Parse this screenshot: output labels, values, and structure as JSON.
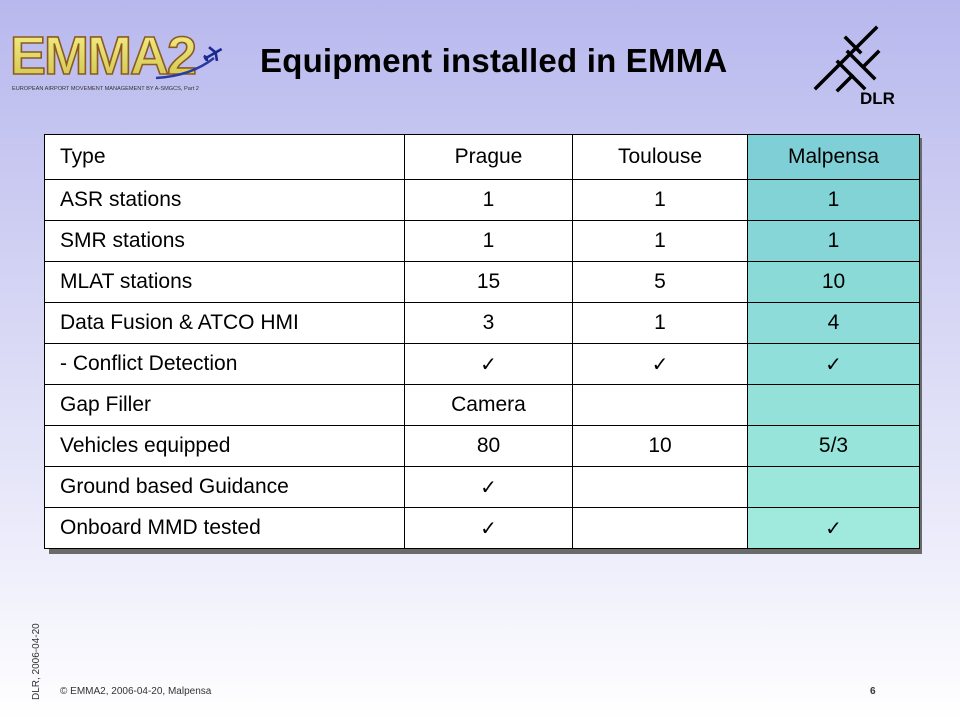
{
  "header": {
    "title": "Equipment installed in EMMA",
    "emma_logo_text": "EMMA2",
    "emma_logo_tagline": "EUROPEAN AIRPORT MOVEMENT MANAGEMENT BY A-SMGCS, Part 2",
    "dlr_logo_text": "DLR"
  },
  "table": {
    "headers": [
      "Type",
      "Prague",
      "Toulouse",
      "Malpensa"
    ],
    "rows": [
      [
        "ASR stations",
        "1",
        "1",
        "1"
      ],
      [
        "SMR stations",
        "1",
        "1",
        "1"
      ],
      [
        "MLAT stations",
        "15",
        "5",
        "10"
      ],
      [
        "Data Fusion & ATCO HMI",
        "3",
        "1",
        "4"
      ],
      [
        "- Conflict Detection",
        "✓",
        "✓",
        "✓"
      ],
      [
        "Gap Filler",
        "Camera",
        "",
        ""
      ],
      [
        "Vehicles equipped",
        "80",
        "10",
        "5/3"
      ],
      [
        "Ground based Guidance",
        "✓",
        "",
        ""
      ],
      [
        "Onboard MMD tested",
        "✓",
        "",
        "✓"
      ]
    ],
    "highlight_column_colors": [
      "#7ecfd6",
      "#82d3d6",
      "#86d6d7",
      "#8adad8",
      "#8edcd9",
      "#91dfda",
      "#94e1da",
      "#97e4db",
      "#9be7dc",
      "#a0eadd"
    ]
  },
  "footer": {
    "vertical_meta": "DLR, 2006-04-20",
    "copyright": "© EMMA2, 2006-04-20, Malpensa",
    "page_number": "6"
  }
}
